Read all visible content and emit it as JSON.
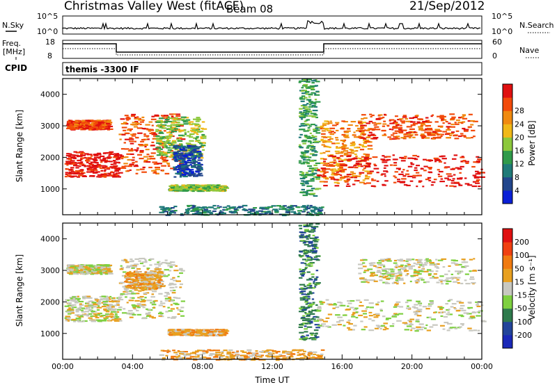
{
  "header": {
    "title": "Christmas Valley West (fitACF)",
    "beam": "Beam 08",
    "date": "21/Sep/2012"
  },
  "top_strips": {
    "nsky_label": "N.Sky",
    "nsky_ticks": [
      "10^5",
      "10^0"
    ],
    "nsearch_label": "N.Search",
    "nsearch_ticks": [
      "10^5",
      "10^0"
    ],
    "freq_label_line1": "Freq.",
    "freq_label_line2": "[MHz]",
    "freq_ticks": [
      "18",
      "8"
    ],
    "nave_label": "Nave",
    "nave_ticks": [
      "60",
      "0"
    ],
    "cpid_label": "CPID",
    "cpid_value": "themis -3300 IF"
  },
  "chart_data": [
    {
      "type": "heatmap",
      "name": "power",
      "ylabel": "Slant Range [km]",
      "xlabel": "",
      "xlim_hours": [
        0,
        24
      ],
      "ylim": [
        180,
        4500
      ],
      "yticks": [
        "1000",
        "2000",
        "3000",
        "4000"
      ],
      "colorbar": {
        "label": "Power [dB]",
        "ticks": [
          "4",
          "8",
          "12",
          "16",
          "20",
          "24",
          "28"
        ],
        "colors": [
          "#0a1fd6",
          "#22468c",
          "#1f7a78",
          "#2f9a4a",
          "#8cc83c",
          "#f0b818",
          "#f08a10",
          "#f24a0a",
          "#e01010"
        ]
      },
      "regions": [
        {
          "t": [
            0.1,
            3.2
          ],
          "r": [
            1400,
            2200
          ],
          "level": 8,
          "desc": "main band"
        },
        {
          "t": [
            0.2,
            2.6
          ],
          "r": [
            2900,
            3200
          ],
          "level": 7
        },
        {
          "t": [
            3.2,
            6.8
          ],
          "r": [
            1500,
            3400
          ],
          "level": 7
        },
        {
          "t": [
            5.3,
            8.0
          ],
          "r": [
            2000,
            3300
          ],
          "level": 4
        },
        {
          "t": [
            6.3,
            7.8
          ],
          "r": [
            1400,
            2400
          ],
          "level": 1
        },
        {
          "t": [
            6.0,
            9.3
          ],
          "r": [
            950,
            1150
          ],
          "level": 4
        },
        {
          "t": [
            5.5,
            14.8
          ],
          "r": [
            180,
            500
          ],
          "level": 2
        },
        {
          "t": [
            13.5,
            14.5
          ],
          "r": [
            800,
            4500
          ],
          "level": 3
        },
        {
          "t": [
            14.7,
            17.5
          ],
          "r": [
            1200,
            3200
          ],
          "level": 6
        },
        {
          "t": [
            14.5,
            24.0
          ],
          "r": [
            1100,
            2100
          ],
          "level": 8
        },
        {
          "t": [
            16.9,
            23.5
          ],
          "r": [
            2600,
            3400
          ],
          "level": 7
        }
      ]
    },
    {
      "type": "heatmap",
      "name": "velocity",
      "ylabel": "Slant Range [km]",
      "xlabel": "Time UT",
      "xlim_hours": [
        0,
        24
      ],
      "xticks": [
        "00:00",
        "04:00",
        "08:00",
        "12:00",
        "16:00",
        "20:00",
        "00:00"
      ],
      "ylim": [
        180,
        4500
      ],
      "yticks": [
        "1000",
        "2000",
        "3000",
        "4000"
      ],
      "colorbar": {
        "label": "Velocity [m s⁻¹]",
        "ticks": [
          "200",
          "100",
          "50",
          "15",
          "-15",
          "-50",
          "-100",
          "-200"
        ],
        "colors": [
          "#1a28b8",
          "#22449a",
          "#2e7a4c",
          "#7ed040",
          "#c8c8c0",
          "#e8a020",
          "#f07a10",
          "#f04010",
          "#e01010"
        ]
      },
      "regions": [
        {
          "t": [
            0.1,
            3.2
          ],
          "r": [
            1400,
            2200
          ],
          "level": 4
        },
        {
          "t": [
            0.2,
            2.6
          ],
          "r": [
            2900,
            3200
          ],
          "level": 4
        },
        {
          "t": [
            3.2,
            6.8
          ],
          "r": [
            1500,
            3400
          ],
          "level": 4
        },
        {
          "t": [
            3.5,
            5.5
          ],
          "r": [
            2400,
            3000
          ],
          "level": 5
        },
        {
          "t": [
            6.0,
            9.3
          ],
          "r": [
            950,
            1150
          ],
          "level": 5
        },
        {
          "t": [
            5.5,
            14.8
          ],
          "r": [
            180,
            500
          ],
          "level": 5
        },
        {
          "t": [
            13.5,
            14.5
          ],
          "r": [
            800,
            4500
          ],
          "level": 2
        },
        {
          "t": [
            14.5,
            24.0
          ],
          "r": [
            1100,
            2100
          ],
          "level": 4
        },
        {
          "t": [
            16.9,
            23.5
          ],
          "r": [
            2600,
            3400
          ],
          "level": 4
        }
      ]
    }
  ]
}
